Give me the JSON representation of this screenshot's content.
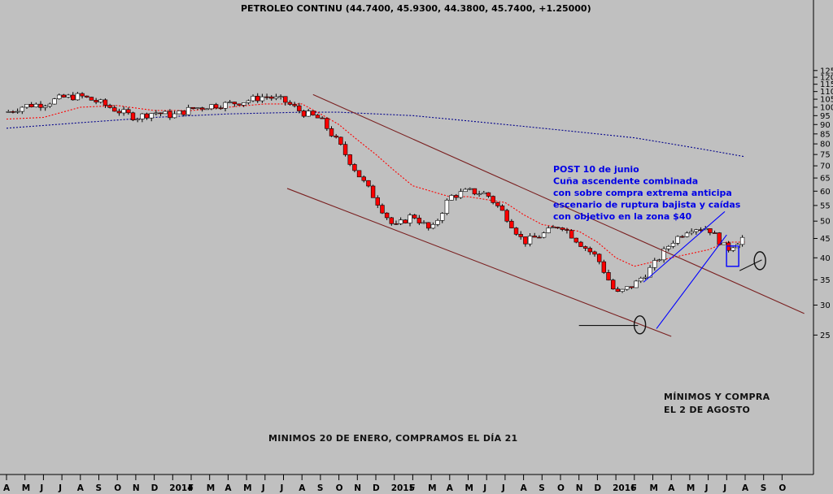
{
  "chart_data": {
    "type": "candlestick",
    "title": "PETROLEO CONTINU (44.7400, 45.9300, 44.3800, 45.7400, +1.25000)",
    "y_scale": "log",
    "ylim": [
      23.5,
      127
    ],
    "y_ticks": [
      25,
      30,
      35,
      40,
      45,
      50,
      55,
      60,
      65,
      70,
      75,
      80,
      85,
      90,
      95,
      100,
      105,
      110,
      115,
      120,
      125
    ],
    "x_tick_labels": [
      "A",
      "M",
      "J",
      "J",
      "A",
      "S",
      "O",
      "N",
      "D",
      "2014",
      "F",
      "M",
      "A",
      "M",
      "J",
      "J",
      "A",
      "S",
      "O",
      "N",
      "D",
      "2015",
      "F",
      "M",
      "A",
      "M",
      "J",
      "J",
      "A",
      "S",
      "O",
      "N",
      "D",
      "2016",
      "F",
      "M",
      "A",
      "M",
      "J",
      "J",
      "A",
      "S",
      "O"
    ],
    "x_range_months": [
      0,
      43
    ],
    "note_text": [
      "POST  10 de junio",
      "Cuña ascendente combinada",
      "con sobre compra extrema anticipa",
      "escenario de ruptura bajista y caídas",
      "con objetivo en la zona $40"
    ],
    "annotation_enero": "MINIMOS 20 DE ENERO, COMPRAMOS EL DÍA 21",
    "annotation_agosto": [
      "MÍNIMOS Y COMPRA",
      "EL 2 DE AGOSTO"
    ],
    "price_path": [
      [
        0,
        97
      ],
      [
        1,
        101
      ],
      [
        2,
        102
      ],
      [
        3,
        106
      ],
      [
        4,
        107
      ],
      [
        5,
        103
      ],
      [
        6,
        98
      ],
      [
        7,
        94
      ],
      [
        8,
        97
      ],
      [
        9,
        95
      ],
      [
        10,
        99
      ],
      [
        11,
        101
      ],
      [
        12,
        102
      ],
      [
        13,
        104
      ],
      [
        14,
        107
      ],
      [
        15,
        104
      ],
      [
        16,
        97
      ],
      [
        17,
        93
      ],
      [
        18,
        80
      ],
      [
        19,
        67
      ],
      [
        20,
        57
      ],
      [
        21,
        48
      ],
      [
        22,
        52
      ],
      [
        23,
        47
      ],
      [
        24,
        58
      ],
      [
        25,
        60
      ],
      [
        26,
        59
      ],
      [
        27,
        52
      ],
      [
        28,
        44
      ],
      [
        29,
        46
      ],
      [
        30,
        49
      ],
      [
        31,
        44
      ],
      [
        32,
        40
      ],
      [
        33,
        32
      ],
      [
        34,
        34
      ],
      [
        35,
        38
      ],
      [
        36,
        44
      ],
      [
        37,
        48
      ],
      [
        38,
        48
      ],
      [
        39,
        42
      ],
      [
        40,
        45.74
      ]
    ],
    "candle_colors": {
      "up": "#ffffff",
      "down": "#ff0000"
    },
    "ma50": [
      [
        0,
        93
      ],
      [
        2,
        94
      ],
      [
        4,
        100
      ],
      [
        6,
        101
      ],
      [
        8,
        98
      ],
      [
        10,
        98
      ],
      [
        12,
        100
      ],
      [
        14,
        102
      ],
      [
        16,
        102
      ],
      [
        17,
        96
      ],
      [
        18,
        90
      ],
      [
        19,
        82
      ],
      [
        20,
        75
      ],
      [
        21,
        68
      ],
      [
        22,
        62
      ],
      [
        24,
        58
      ],
      [
        25,
        58
      ],
      [
        26,
        57
      ],
      [
        27,
        56
      ],
      [
        28,
        52
      ],
      [
        29,
        49
      ],
      [
        30,
        48
      ],
      [
        31,
        47
      ],
      [
        32,
        44
      ],
      [
        33,
        40
      ],
      [
        34,
        38
      ],
      [
        35,
        39
      ],
      [
        36,
        40
      ],
      [
        38,
        42
      ],
      [
        39,
        44
      ],
      [
        40,
        44
      ]
    ],
    "ma200": [
      [
        0,
        88
      ],
      [
        4,
        91
      ],
      [
        8,
        94
      ],
      [
        12,
        96
      ],
      [
        16,
        97
      ],
      [
        18,
        97
      ],
      [
        20,
        96
      ],
      [
        22,
        95
      ],
      [
        24,
        93
      ],
      [
        26,
        91
      ],
      [
        28,
        89
      ],
      [
        30,
        87
      ],
      [
        32,
        85
      ],
      [
        34,
        83
      ],
      [
        36,
        80
      ],
      [
        38,
        77
      ],
      [
        40,
        74
      ]
    ],
    "colors": {
      "background": "#c0c0c0",
      "note": "#0000e6",
      "channel_line": "#7a2020",
      "wedge_line": "#0000ff",
      "ma50": "#ff0000",
      "ma200": "#00008b",
      "annotation": "#111111"
    },
    "lines": [
      {
        "name": "upper-channel",
        "from": [
          16.6,
          108
        ],
        "to": [
          43.2,
          28.5
        ],
        "color": "#7a2020"
      },
      {
        "name": "lower-channel",
        "from": [
          15.2,
          61
        ],
        "to": [
          36,
          24.8
        ],
        "color": "#7a2020"
      },
      {
        "name": "wedge-upper",
        "from": [
          34.5,
          34.5
        ],
        "to": [
          38.9,
          53
        ],
        "color": "#0000ff"
      },
      {
        "name": "wedge-lower",
        "from": [
          35.2,
          26
        ],
        "to": [
          39,
          46
        ],
        "color": "#0000ff"
      },
      {
        "name": "pointer-enero",
        "from": [
          31,
          26.5
        ],
        "to": [
          34.2,
          26.5
        ],
        "color": "#111111"
      },
      {
        "name": "pointer-agosto",
        "from": [
          39.7,
          37
        ],
        "to": [
          40.9,
          39.5
        ],
        "color": "#111111"
      }
    ],
    "markers": [
      {
        "name": "ellipse-enero",
        "shape": "ellipse",
        "center": [
          34.3,
          26.6
        ],
        "color": "#111111"
      },
      {
        "name": "ellipse-agosto",
        "shape": "ellipse",
        "center": [
          40.8,
          39.3
        ],
        "color": "#111111"
      },
      {
        "name": "target-box",
        "shape": "rect",
        "center": [
          39.3,
          40.5
        ],
        "color": "#0000ff"
      }
    ]
  }
}
